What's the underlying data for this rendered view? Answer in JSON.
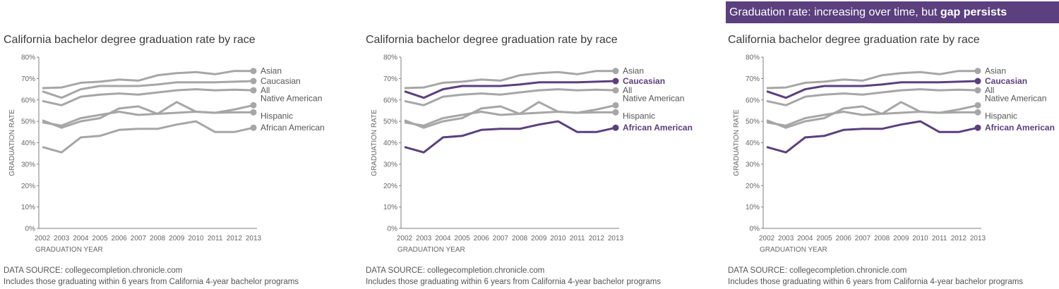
{
  "banner": {
    "text": "Graduation rate: increasing over time, but ",
    "bold": "gap persists"
  },
  "colors": {
    "gray": "#a6a6a6",
    "highlight": "#5b3f7e",
    "label_gray": "#555555",
    "axis": "#7f7f7f"
  },
  "footer": {
    "source": "DATA SOURCE: collegecompletion.chronicle.com",
    "note": "Includes those graduating within 6 years from California 4-year bachelor programs"
  },
  "chart_data": [
    {
      "type": "line",
      "title": "California bachelor degree graduation rate by race",
      "xlabel": "GRADUATION YEAR",
      "ylabel": "GRADUATION RATE",
      "x": [
        "2002",
        "2003",
        "2004",
        "2005",
        "2006",
        "2007",
        "2008",
        "2009",
        "2010",
        "2011",
        "2012",
        "2013"
      ],
      "ylim": [
        0,
        80
      ],
      "yticks": [
        "0%",
        "10%",
        "20%",
        "30%",
        "40%",
        "50%",
        "60%",
        "70%",
        "80%"
      ],
      "grid": false,
      "highlight": [],
      "series": [
        {
          "name": "Asian",
          "values": [
            65.5,
            65.8,
            68,
            68.5,
            69.5,
            69,
            71.5,
            72.5,
            73,
            72,
            73.5,
            73.5
          ]
        },
        {
          "name": "Caucasian",
          "values": [
            64,
            61,
            65,
            66.5,
            66.5,
            66.5,
            67.2,
            68.2,
            68.2,
            68.2,
            68.5,
            68.8
          ]
        },
        {
          "name": "All",
          "values": [
            59.5,
            57.5,
            61.5,
            62.5,
            63,
            62.5,
            63.5,
            64.5,
            65,
            64.5,
            64.8,
            64.5
          ]
        },
        {
          "name": "Native American",
          "values": [
            50.5,
            47,
            50,
            51.5,
            56,
            57,
            53.5,
            59,
            54.5,
            54,
            55.5,
            57.5
          ]
        },
        {
          "name": "Hispanic",
          "values": [
            49.5,
            48,
            51.5,
            53,
            54.5,
            53,
            53.5,
            54,
            54.5,
            54,
            54.2,
            54.2
          ]
        },
        {
          "name": "African American",
          "values": [
            38,
            35.5,
            42.5,
            43.2,
            46,
            46.5,
            46.5,
            48.5,
            50,
            45,
            45,
            47
          ]
        }
      ]
    },
    {
      "type": "line",
      "title": "California bachelor degree graduation rate by race",
      "xlabel": "GRADUATION YEAR",
      "ylabel": "GRADUATION RATE",
      "x": [
        "2002",
        "2003",
        "2004",
        "2005",
        "2006",
        "2007",
        "2008",
        "2009",
        "2010",
        "2011",
        "2012",
        "2013"
      ],
      "ylim": [
        0,
        80
      ],
      "yticks": [
        "0%",
        "10%",
        "20%",
        "30%",
        "40%",
        "50%",
        "60%",
        "70%",
        "80%"
      ],
      "grid": false,
      "highlight": [
        "Caucasian",
        "African American"
      ],
      "series": [
        {
          "name": "Asian",
          "values": [
            65.5,
            65.8,
            68,
            68.5,
            69.5,
            69,
            71.5,
            72.5,
            73,
            72,
            73.5,
            73.5
          ]
        },
        {
          "name": "Caucasian",
          "values": [
            64,
            61,
            65,
            66.5,
            66.5,
            66.5,
            67.2,
            68.2,
            68.2,
            68.2,
            68.5,
            68.8
          ]
        },
        {
          "name": "All",
          "values": [
            59.5,
            57.5,
            61.5,
            62.5,
            63,
            62.5,
            63.5,
            64.5,
            65,
            64.5,
            64.8,
            64.5
          ]
        },
        {
          "name": "Native American",
          "values": [
            50.5,
            47,
            50,
            51.5,
            56,
            57,
            53.5,
            59,
            54.5,
            54,
            55.5,
            57.5
          ]
        },
        {
          "name": "Hispanic",
          "values": [
            49.5,
            48,
            51.5,
            53,
            54.5,
            53,
            53.5,
            54,
            54.5,
            54,
            54.2,
            54.2
          ]
        },
        {
          "name": "African American",
          "values": [
            38,
            35.5,
            42.5,
            43.2,
            46,
            46.5,
            46.5,
            48.5,
            50,
            45,
            45,
            47
          ]
        }
      ]
    },
    {
      "type": "line",
      "title": "California bachelor degree graduation rate by race",
      "xlabel": "GRADUATION YEAR",
      "ylabel": "GRADUATION RATE",
      "x": [
        "2002",
        "2003",
        "2004",
        "2005",
        "2006",
        "2007",
        "2008",
        "2009",
        "2010",
        "2011",
        "2012",
        "2013"
      ],
      "ylim": [
        0,
        80
      ],
      "yticks": [
        "0%",
        "10%",
        "20%",
        "30%",
        "40%",
        "50%",
        "60%",
        "70%",
        "80%"
      ],
      "grid": false,
      "highlight": [
        "Caucasian",
        "African American"
      ],
      "series": [
        {
          "name": "Asian",
          "values": [
            65.5,
            65.8,
            68,
            68.5,
            69.5,
            69,
            71.5,
            72.5,
            73,
            72,
            73.5,
            73.5
          ]
        },
        {
          "name": "Caucasian",
          "values": [
            64,
            61,
            65,
            66.5,
            66.5,
            66.5,
            67.2,
            68.2,
            68.2,
            68.2,
            68.5,
            68.8
          ]
        },
        {
          "name": "All",
          "values": [
            59.5,
            57.5,
            61.5,
            62.5,
            63,
            62.5,
            63.5,
            64.5,
            65,
            64.5,
            64.8,
            64.5
          ]
        },
        {
          "name": "Native American",
          "values": [
            50.5,
            47,
            50,
            51.5,
            56,
            57,
            53.5,
            59,
            54.5,
            54,
            55.5,
            57.5
          ]
        },
        {
          "name": "Hispanic",
          "values": [
            49.5,
            48,
            51.5,
            53,
            54.5,
            53,
            53.5,
            54,
            54.5,
            54,
            54.2,
            54.2
          ]
        },
        {
          "name": "African American",
          "values": [
            38,
            35.5,
            42.5,
            43.2,
            46,
            46.5,
            46.5,
            48.5,
            50,
            45,
            45,
            47
          ]
        }
      ]
    }
  ]
}
